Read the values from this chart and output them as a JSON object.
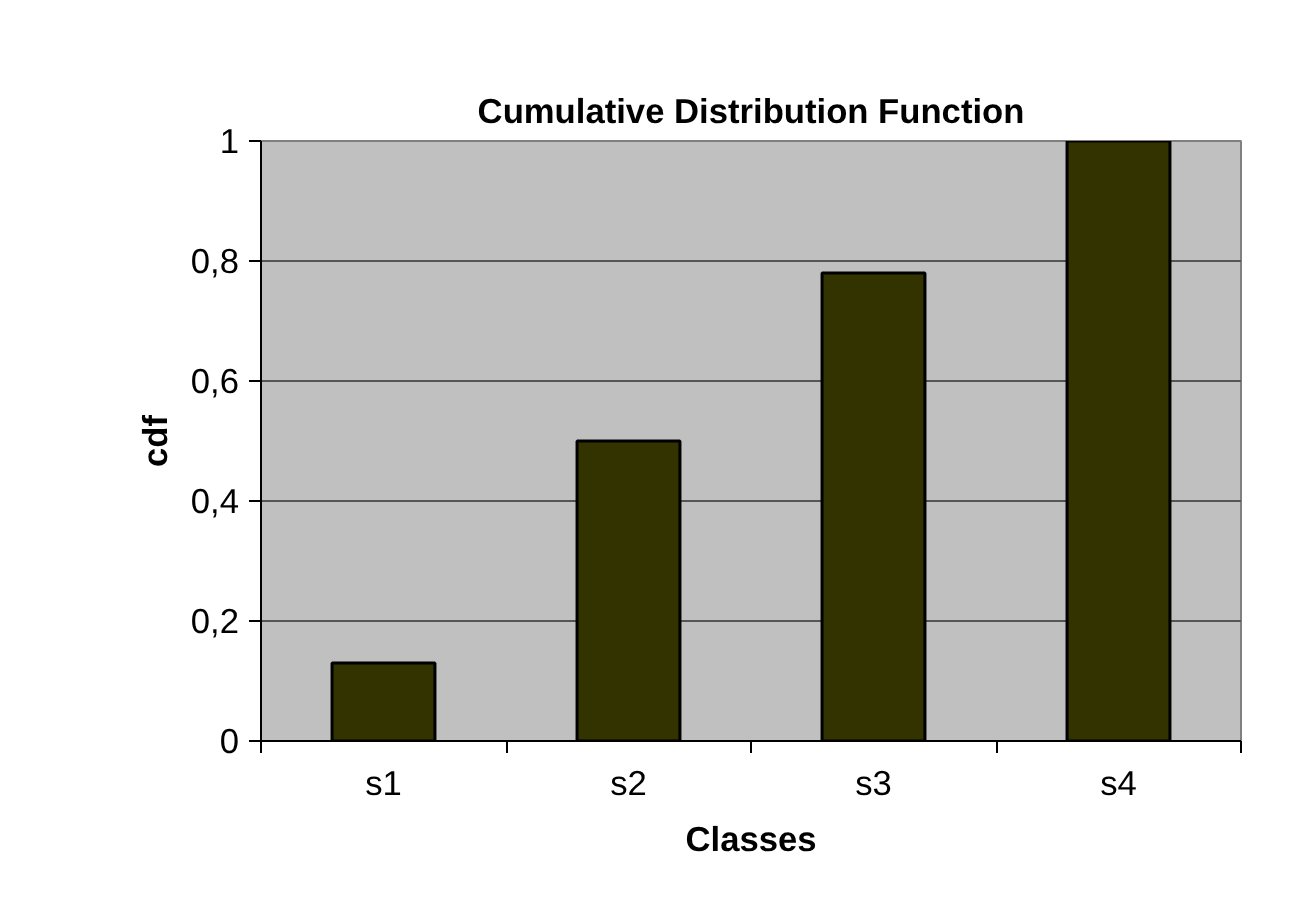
{
  "chart_data": {
    "type": "bar",
    "title": "Cumulative Distribution Function",
    "xlabel": "Classes",
    "ylabel": "cdf",
    "categories": [
      "s1",
      "s2",
      "s3",
      "s4"
    ],
    "values": [
      0.13,
      0.5,
      0.78,
      1
    ],
    "color": "#333300",
    "ylim": [
      0,
      1
    ],
    "yticks": [
      0,
      {
        "value": 0.2,
        "label": "0,2"
      },
      {
        "value": 0.4,
        "label": "0,4"
      },
      {
        "value": 0.6,
        "label": "0,6"
      },
      {
        "value": 0.8,
        "label": "0,8"
      },
      1
    ],
    "grid": "y"
  }
}
